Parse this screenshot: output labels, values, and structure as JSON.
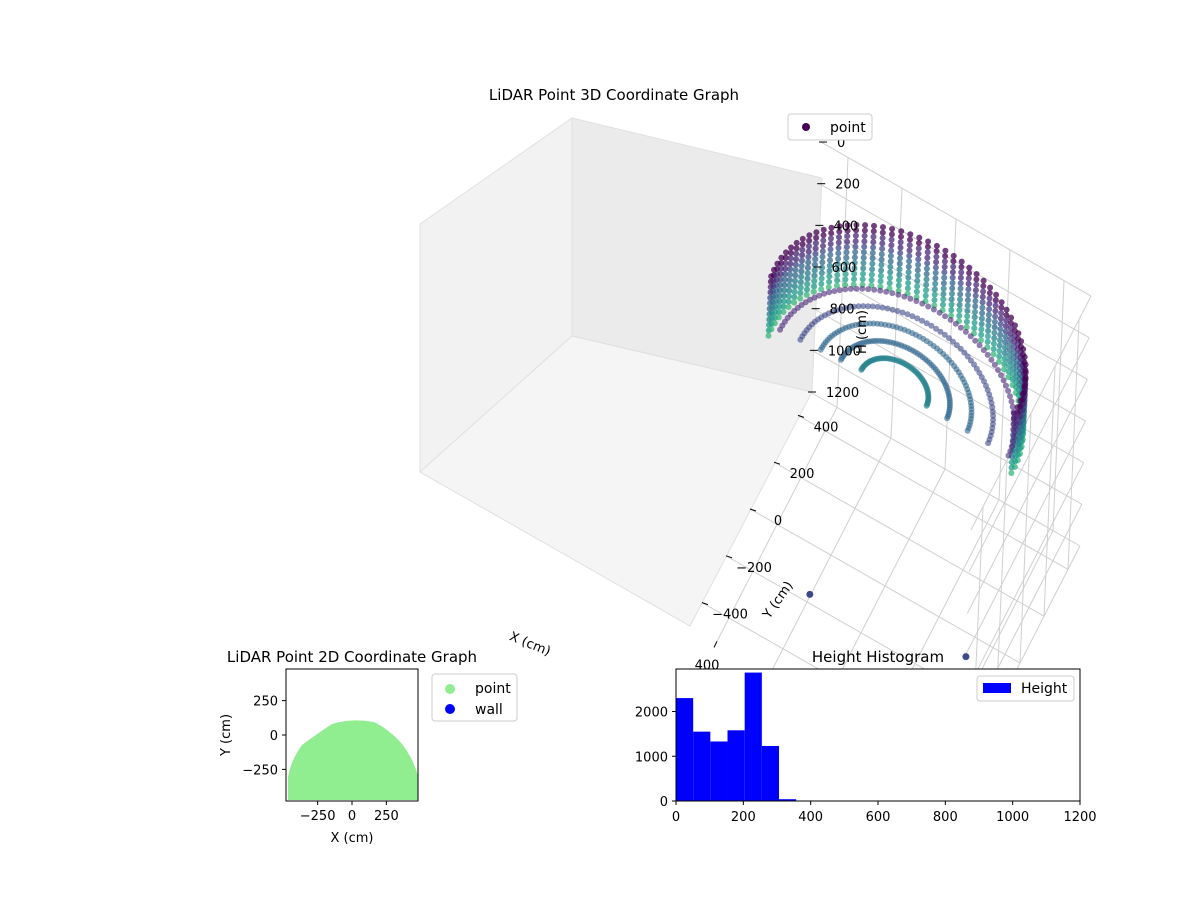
{
  "chart_data": [
    {
      "type": "scatter",
      "projection": "3d",
      "title": "LiDAR Point 3D Coordinate Graph",
      "xlabel": "X (cm)",
      "ylabel": "Y (cm)",
      "zlabel": "H (cm)",
      "x_ticks": [
        "−400",
        "−200",
        "0",
        "200",
        "400"
      ],
      "y_ticks": [
        "−400",
        "−200",
        "0",
        "200",
        "400"
      ],
      "z_ticks": [
        "0",
        "200",
        "400",
        "600",
        "800",
        "1000",
        "1200"
      ],
      "xlim": [
        -500,
        500
      ],
      "ylim": [
        -500,
        500
      ],
      "zlim": [
        0,
        1200
      ],
      "z_inverted": true,
      "grid": true,
      "colormap": "viridis",
      "legend": {
        "placement": "top-right",
        "entries": [
          {
            "label": "point",
            "color": "#440154"
          }
        ]
      },
      "series": [
        {
          "name": "point",
          "description_of_shape": "half-dome of points: wall columns along a semicircle of radius about 450 cm (y >= -450), heights 0 to about 300 cm, plus a ceiling ring",
          "sample_points": [
            {
              "x": -430,
              "y": -300,
              "h": 240
            },
            {
              "x": -380,
              "y": -80,
              "h": 250
            },
            {
              "x": -250,
              "y": 150,
              "h": 260
            },
            {
              "x": 0,
              "y": 330,
              "h": 250
            },
            {
              "x": 250,
              "y": 330,
              "h": 240
            },
            {
              "x": 400,
              "y": 150,
              "h": 250
            },
            {
              "x": 450,
              "y": -200,
              "h": 230
            },
            {
              "x": 300,
              "y": -420,
              "h": 240
            },
            {
              "x": -470,
              "y": -420,
              "h": 720
            },
            {
              "x": 80,
              "y": -480,
              "h": 760
            }
          ]
        }
      ]
    },
    {
      "type": "scatter",
      "title": "LiDAR Point 2D Coordinate Graph",
      "xlabel": "X (cm)",
      "ylabel": "Y (cm)",
      "x_ticks": [
        "−250",
        "0",
        "250"
      ],
      "y_ticks": [
        "250",
        "0",
        "−250"
      ],
      "xlim": [
        -480,
        480
      ],
      "ylim": [
        -480,
        480
      ],
      "legend": {
        "placement": "outside-right",
        "entries": [
          {
            "label": "point",
            "color": "#90ee90"
          },
          {
            "label": "wall",
            "color": "#0000ff"
          }
        ]
      },
      "series": [
        {
          "name": "point",
          "color": "#90ee90",
          "region": "filled half-disk, top edge y≈100 at x≈0, spanning x −470..470, y −480..100"
        },
        {
          "name": "wall",
          "color": "#0000ff",
          "values": []
        }
      ]
    },
    {
      "type": "bar",
      "subtype": "histogram",
      "title": "Height Histogram",
      "xlim": [
        0,
        1200
      ],
      "ylim": [
        0,
        2950
      ],
      "x_ticks": [
        "0",
        "200",
        "400",
        "600",
        "800",
        "1000",
        "1200"
      ],
      "y_ticks": [
        "0",
        "1000",
        "2000"
      ],
      "legend": {
        "placement": "top-right",
        "entries": [
          {
            "label": "Height",
            "color": "#0000ff"
          }
        ]
      },
      "bin_width": 51,
      "bins": [
        {
          "start": 0,
          "end": 51,
          "count": 2300
        },
        {
          "start": 51,
          "end": 102,
          "count": 1550
        },
        {
          "start": 102,
          "end": 153,
          "count": 1330
        },
        {
          "start": 153,
          "end": 204,
          "count": 1580
        },
        {
          "start": 204,
          "end": 255,
          "count": 2870
        },
        {
          "start": 255,
          "end": 306,
          "count": 1230
        },
        {
          "start": 306,
          "end": 357,
          "count": 40
        },
        {
          "start": 357,
          "end": 408,
          "count": 10
        }
      ]
    }
  ]
}
